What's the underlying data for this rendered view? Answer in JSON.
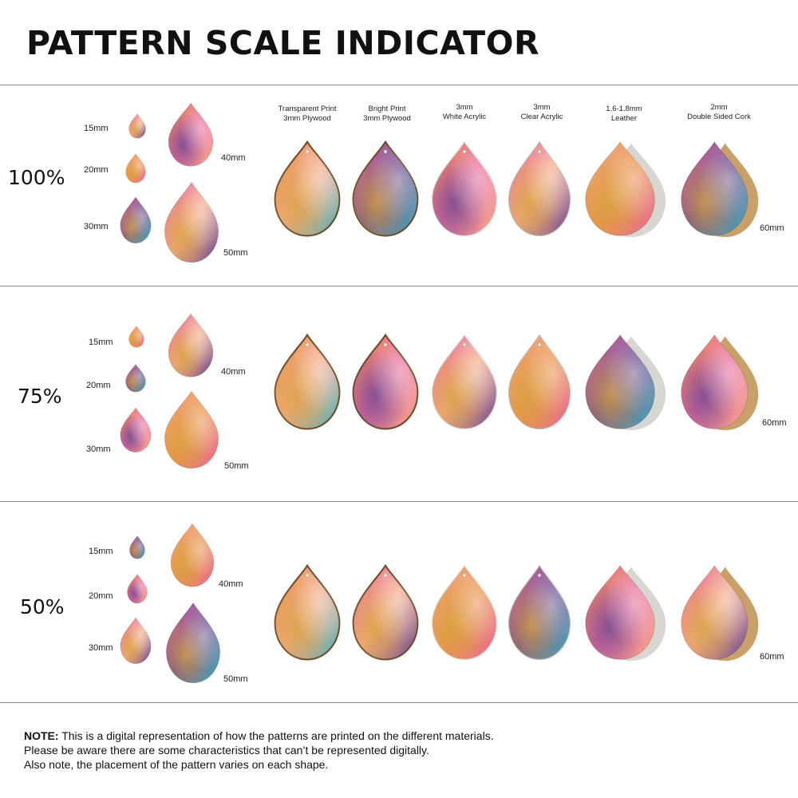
{
  "title": "PATTERN SCALE INDICATOR",
  "materials": [
    {
      "line1": "Transparent Print",
      "line2": "3mm Plywood"
    },
    {
      "line1": "Bright Print",
      "line2": "3mm Plywood"
    },
    {
      "line1": "3mm",
      "line2": "White Acrylic"
    },
    {
      "line1": "3mm",
      "line2": "Clear Acrylic"
    },
    {
      "line1": "1.6-1.8mm",
      "line2": "Leather"
    },
    {
      "line1": "2mm",
      "line2": "Double Sided Cork"
    }
  ],
  "sections": [
    {
      "scale": "100%",
      "sizes": {
        "s15": "15mm",
        "s20": "20mm",
        "s30": "30mm",
        "s40": "40mm",
        "s50": "50mm",
        "s60": "60mm"
      }
    },
    {
      "scale": "75%",
      "sizes": {
        "s15": "15mm",
        "s20": "20mm",
        "s30": "30mm",
        "s40": "40mm",
        "s50": "50mm",
        "s60": "60mm"
      }
    },
    {
      "scale": "50%",
      "sizes": {
        "s15": "15mm",
        "s20": "20mm",
        "s30": "30mm",
        "s40": "40mm",
        "s50": "50mm",
        "s60": "60mm"
      }
    }
  ],
  "note": {
    "label": "NOTE:",
    "line1": " This is a digital representation of how the patterns are printed on the different materials.",
    "line2": "Please be aware there are some characteristics that can’t be represented digitally.",
    "line3": "Also note, the placement of the pattern varies on each shape."
  },
  "colors": {
    "pink": "#e96a9c",
    "peach": "#f4a98a",
    "orange": "#e9924a",
    "purple": "#6b4a8f",
    "teal": "#4fb3b8",
    "gold": "#d9a441",
    "leather": "#d8d6d0",
    "cork": "#c9a06a"
  }
}
